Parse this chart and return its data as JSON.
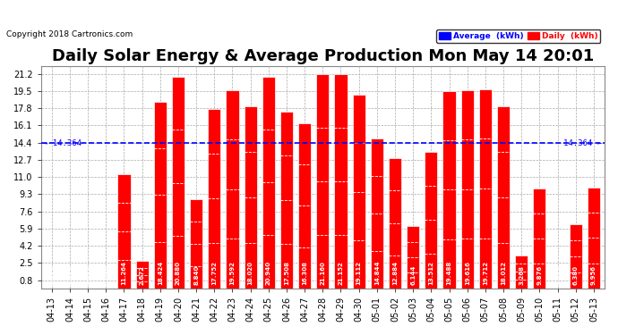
{
  "title": "Daily Solar Energy & Average Production Mon May 14 20:01",
  "copyright": "Copyright 2018 Cartronics.com",
  "average": 14.364,
  "categories": [
    "04-13",
    "04-14",
    "04-15",
    "04-16",
    "04-17",
    "04-18",
    "04-19",
    "04-20",
    "04-21",
    "04-22",
    "04-23",
    "04-24",
    "04-25",
    "04-26",
    "04-27",
    "04-28",
    "04-29",
    "04-30",
    "05-01",
    "05-02",
    "05-03",
    "05-04",
    "05-05",
    "05-06",
    "05-07",
    "05-08",
    "05-09",
    "05-10",
    "05-11",
    "05-12",
    "05-13"
  ],
  "values": [
    0.0,
    0.0,
    0.0,
    0.0,
    11.264,
    2.672,
    18.424,
    20.88,
    8.84,
    17.752,
    19.592,
    18.02,
    20.94,
    17.508,
    16.308,
    21.16,
    21.152,
    19.112,
    14.844,
    12.884,
    6.144,
    13.512,
    19.488,
    19.616,
    19.712,
    18.012,
    3.268,
    9.876,
    0.0,
    6.38,
    9.956
  ],
  "bar_color": "#ff0000",
  "bar_edge_color": "#ff0000",
  "avg_line_color": "#0000ff",
  "background_color": "#ffffff",
  "plot_bg_color": "#ffffff",
  "grid_color": "#aaaaaa",
  "yticks": [
    0.8,
    2.5,
    4.2,
    5.9,
    7.6,
    9.3,
    11.0,
    12.7,
    14.4,
    16.1,
    17.8,
    19.5,
    21.2
  ],
  "title_fontsize": 13,
  "label_fontsize": 6.5,
  "tick_fontsize": 7,
  "avg_label": "14.364",
  "legend_avg_label": "Average  (kWh)",
  "legend_daily_label": "Daily  (kWh)"
}
